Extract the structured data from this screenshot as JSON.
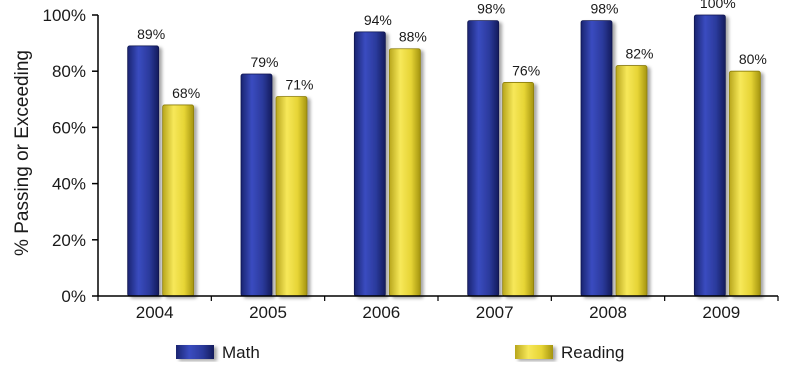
{
  "chart_data": {
    "type": "bar",
    "title": "",
    "xlabel": "",
    "ylabel": "% Passing or Exceeding",
    "categories": [
      "2004",
      "2005",
      "2006",
      "2007",
      "2008",
      "2009"
    ],
    "series": [
      {
        "name": "Math",
        "values": [
          89,
          79,
          94,
          98,
          98,
          100
        ],
        "color": "#2b3a9c"
      },
      {
        "name": "Reading",
        "values": [
          68,
          71,
          88,
          76,
          82,
          80
        ],
        "color": "#e6d435"
      }
    ],
    "ylim": [
      0,
      100
    ],
    "yticks": [
      0,
      20,
      40,
      60,
      80,
      100
    ],
    "ytick_suffix": "%",
    "data_label_suffix": "%",
    "grid": false,
    "legend_position": "bottom"
  }
}
